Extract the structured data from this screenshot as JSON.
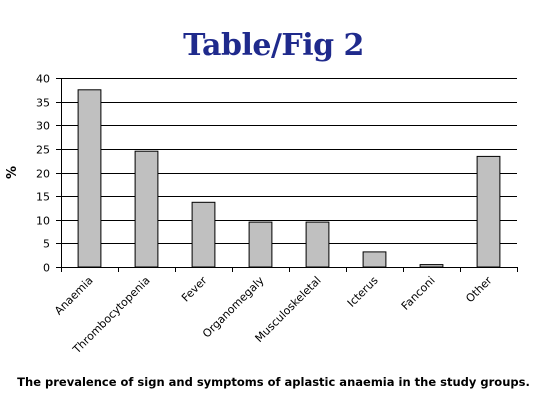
{
  "slide": {
    "title": "Table/Fig 2",
    "caption": "The prevalence of sign and symptoms of aplastic anaemia in the study groups."
  },
  "colors": {
    "title": "#1f2a8c",
    "bar_fill": "#c0c0c0",
    "bar_stroke": "#000000",
    "gridline": "#000000"
  },
  "chart_data": {
    "type": "bar",
    "title": "",
    "xlabel": "",
    "ylabel": "%",
    "categories": [
      "Anaemia",
      "Thrombocytopenia",
      "Fever",
      "Organomegaly",
      "Musculoskeletal",
      "Icterus",
      "Fanconi",
      "Other"
    ],
    "values": [
      37.5,
      24.5,
      13.7,
      9.5,
      9.5,
      3.2,
      0.5,
      23.4
    ],
    "ylim": [
      0,
      40
    ],
    "yticks": [
      0,
      5,
      10,
      15,
      20,
      25,
      30,
      35,
      40
    ],
    "grid": "horizontal",
    "legend": "none"
  }
}
